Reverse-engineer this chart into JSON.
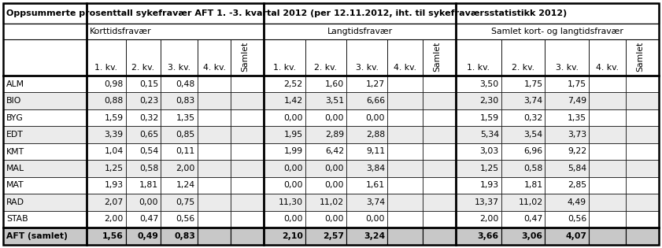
{
  "title": "Oppsummerte prosenttall sykefravær AFT 1. -3. kvartal 2012 (per 12.11.2012, iht. til sykefraværsstatistikk 2012)",
  "group_headers": [
    "Korttidsfravær",
    "Langtidsfravær",
    "Samlet kort- og langtidsfravær"
  ],
  "col_header_labels": [
    "1. kv.",
    "2. kv.",
    "3. kv.",
    "4. kv.",
    "Samlet",
    "1. kv.",
    "2. kv.",
    "3. kv.",
    "4. kv.",
    "Samlet",
    "1. kv.",
    "2. kv.",
    "3. kv.",
    "4. kv.",
    "Samlet"
  ],
  "rows": [
    [
      "ALM",
      "0,98",
      "0,15",
      "0,48",
      "",
      "",
      "2,52",
      "1,60",
      "1,27",
      "",
      "",
      "3,50",
      "1,75",
      "1,75",
      "",
      ""
    ],
    [
      "BIO",
      "0,88",
      "0,23",
      "0,83",
      "",
      "",
      "1,42",
      "3,51",
      "6,66",
      "",
      "",
      "2,30",
      "3,74",
      "7,49",
      "",
      ""
    ],
    [
      "BYG",
      "1,59",
      "0,32",
      "1,35",
      "",
      "",
      "0,00",
      "0,00",
      "0,00",
      "",
      "",
      "1,59",
      "0,32",
      "1,35",
      "",
      ""
    ],
    [
      "EDT",
      "3,39",
      "0,65",
      "0,85",
      "",
      "",
      "1,95",
      "2,89",
      "2,88",
      "",
      "",
      "5,34",
      "3,54",
      "3,73",
      "",
      ""
    ],
    [
      "KMT",
      "1,04",
      "0,54",
      "0,11",
      "",
      "",
      "1,99",
      "6,42",
      "9,11",
      "",
      "",
      "3,03",
      "6,96",
      "9,22",
      "",
      ""
    ],
    [
      "MAL",
      "1,25",
      "0,58",
      "2,00",
      "",
      "",
      "0,00",
      "0,00",
      "3,84",
      "",
      "",
      "1,25",
      "0,58",
      "5,84",
      "",
      ""
    ],
    [
      "MAT",
      "1,93",
      "1,81",
      "1,24",
      "",
      "",
      "0,00",
      "0,00",
      "1,61",
      "",
      "",
      "1,93",
      "1,81",
      "2,85",
      "",
      ""
    ],
    [
      "RAD",
      "2,07",
      "0,00",
      "0,75",
      "",
      "",
      "11,30",
      "11,02",
      "3,74",
      "",
      "",
      "13,37",
      "11,02",
      "4,49",
      "",
      ""
    ],
    [
      "STAB",
      "2,00",
      "0,47",
      "0,56",
      "",
      "",
      "0,00",
      "0,00",
      "0,00",
      "",
      "",
      "2,00",
      "0,47",
      "0,56",
      "",
      ""
    ],
    [
      "AFT (samlet)",
      "1,56",
      "0,49",
      "0,83",
      "",
      "",
      "2,10",
      "2,57",
      "3,24",
      "",
      "",
      "3,66",
      "3,06",
      "4,07",
      "",
      ""
    ]
  ],
  "row_bg_odd": "#ffffff",
  "row_bg_even": "#ebebeb",
  "last_row_bg": "#c8c8c8",
  "border_light": "#000000",
  "border_thick": "#000000",
  "title_fontsize": 8.0,
  "header_fontsize": 7.8,
  "cell_fontsize": 7.8
}
